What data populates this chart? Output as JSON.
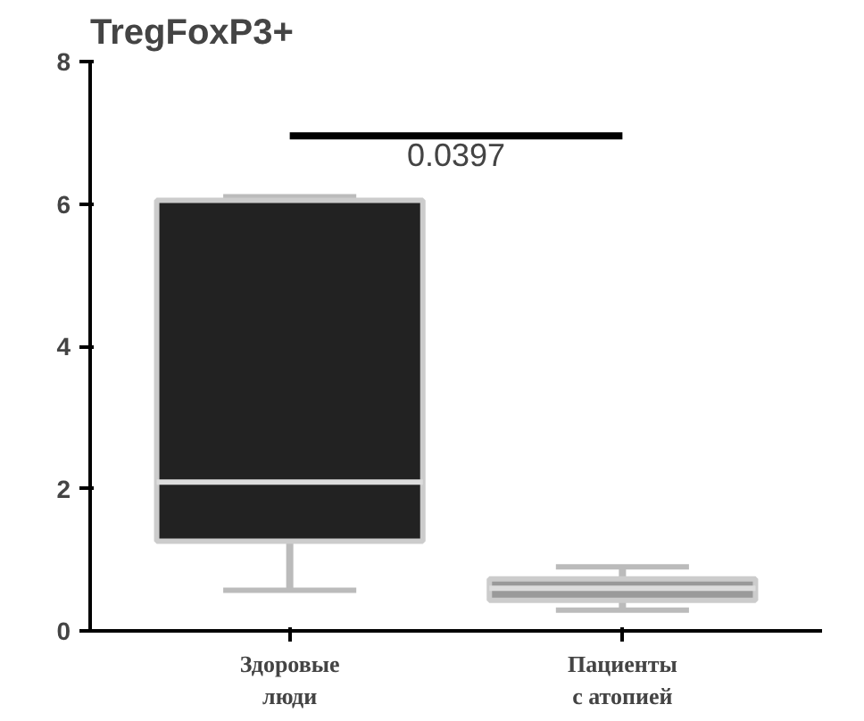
{
  "chart_data": {
    "type": "box",
    "title": "TregFoxP3+",
    "categories": [
      "Здоровые\nлюди",
      "Пациенты\nс атопией"
    ],
    "boxes": [
      {
        "low": 0.57,
        "q1": 1.26,
        "median": 2.09,
        "q3": 6.05,
        "high": 6.1
      },
      {
        "low": 0.29,
        "q1": 0.43,
        "median": 0.6,
        "q3": 0.73,
        "high": 0.9
      }
    ],
    "colors": [
      "#222222",
      "#9a9a9a"
    ],
    "ylim": [
      0,
      8
    ],
    "yticks": [
      0,
      2,
      4,
      6,
      8
    ],
    "grid": false,
    "annotations": [
      "0.0397"
    ]
  }
}
